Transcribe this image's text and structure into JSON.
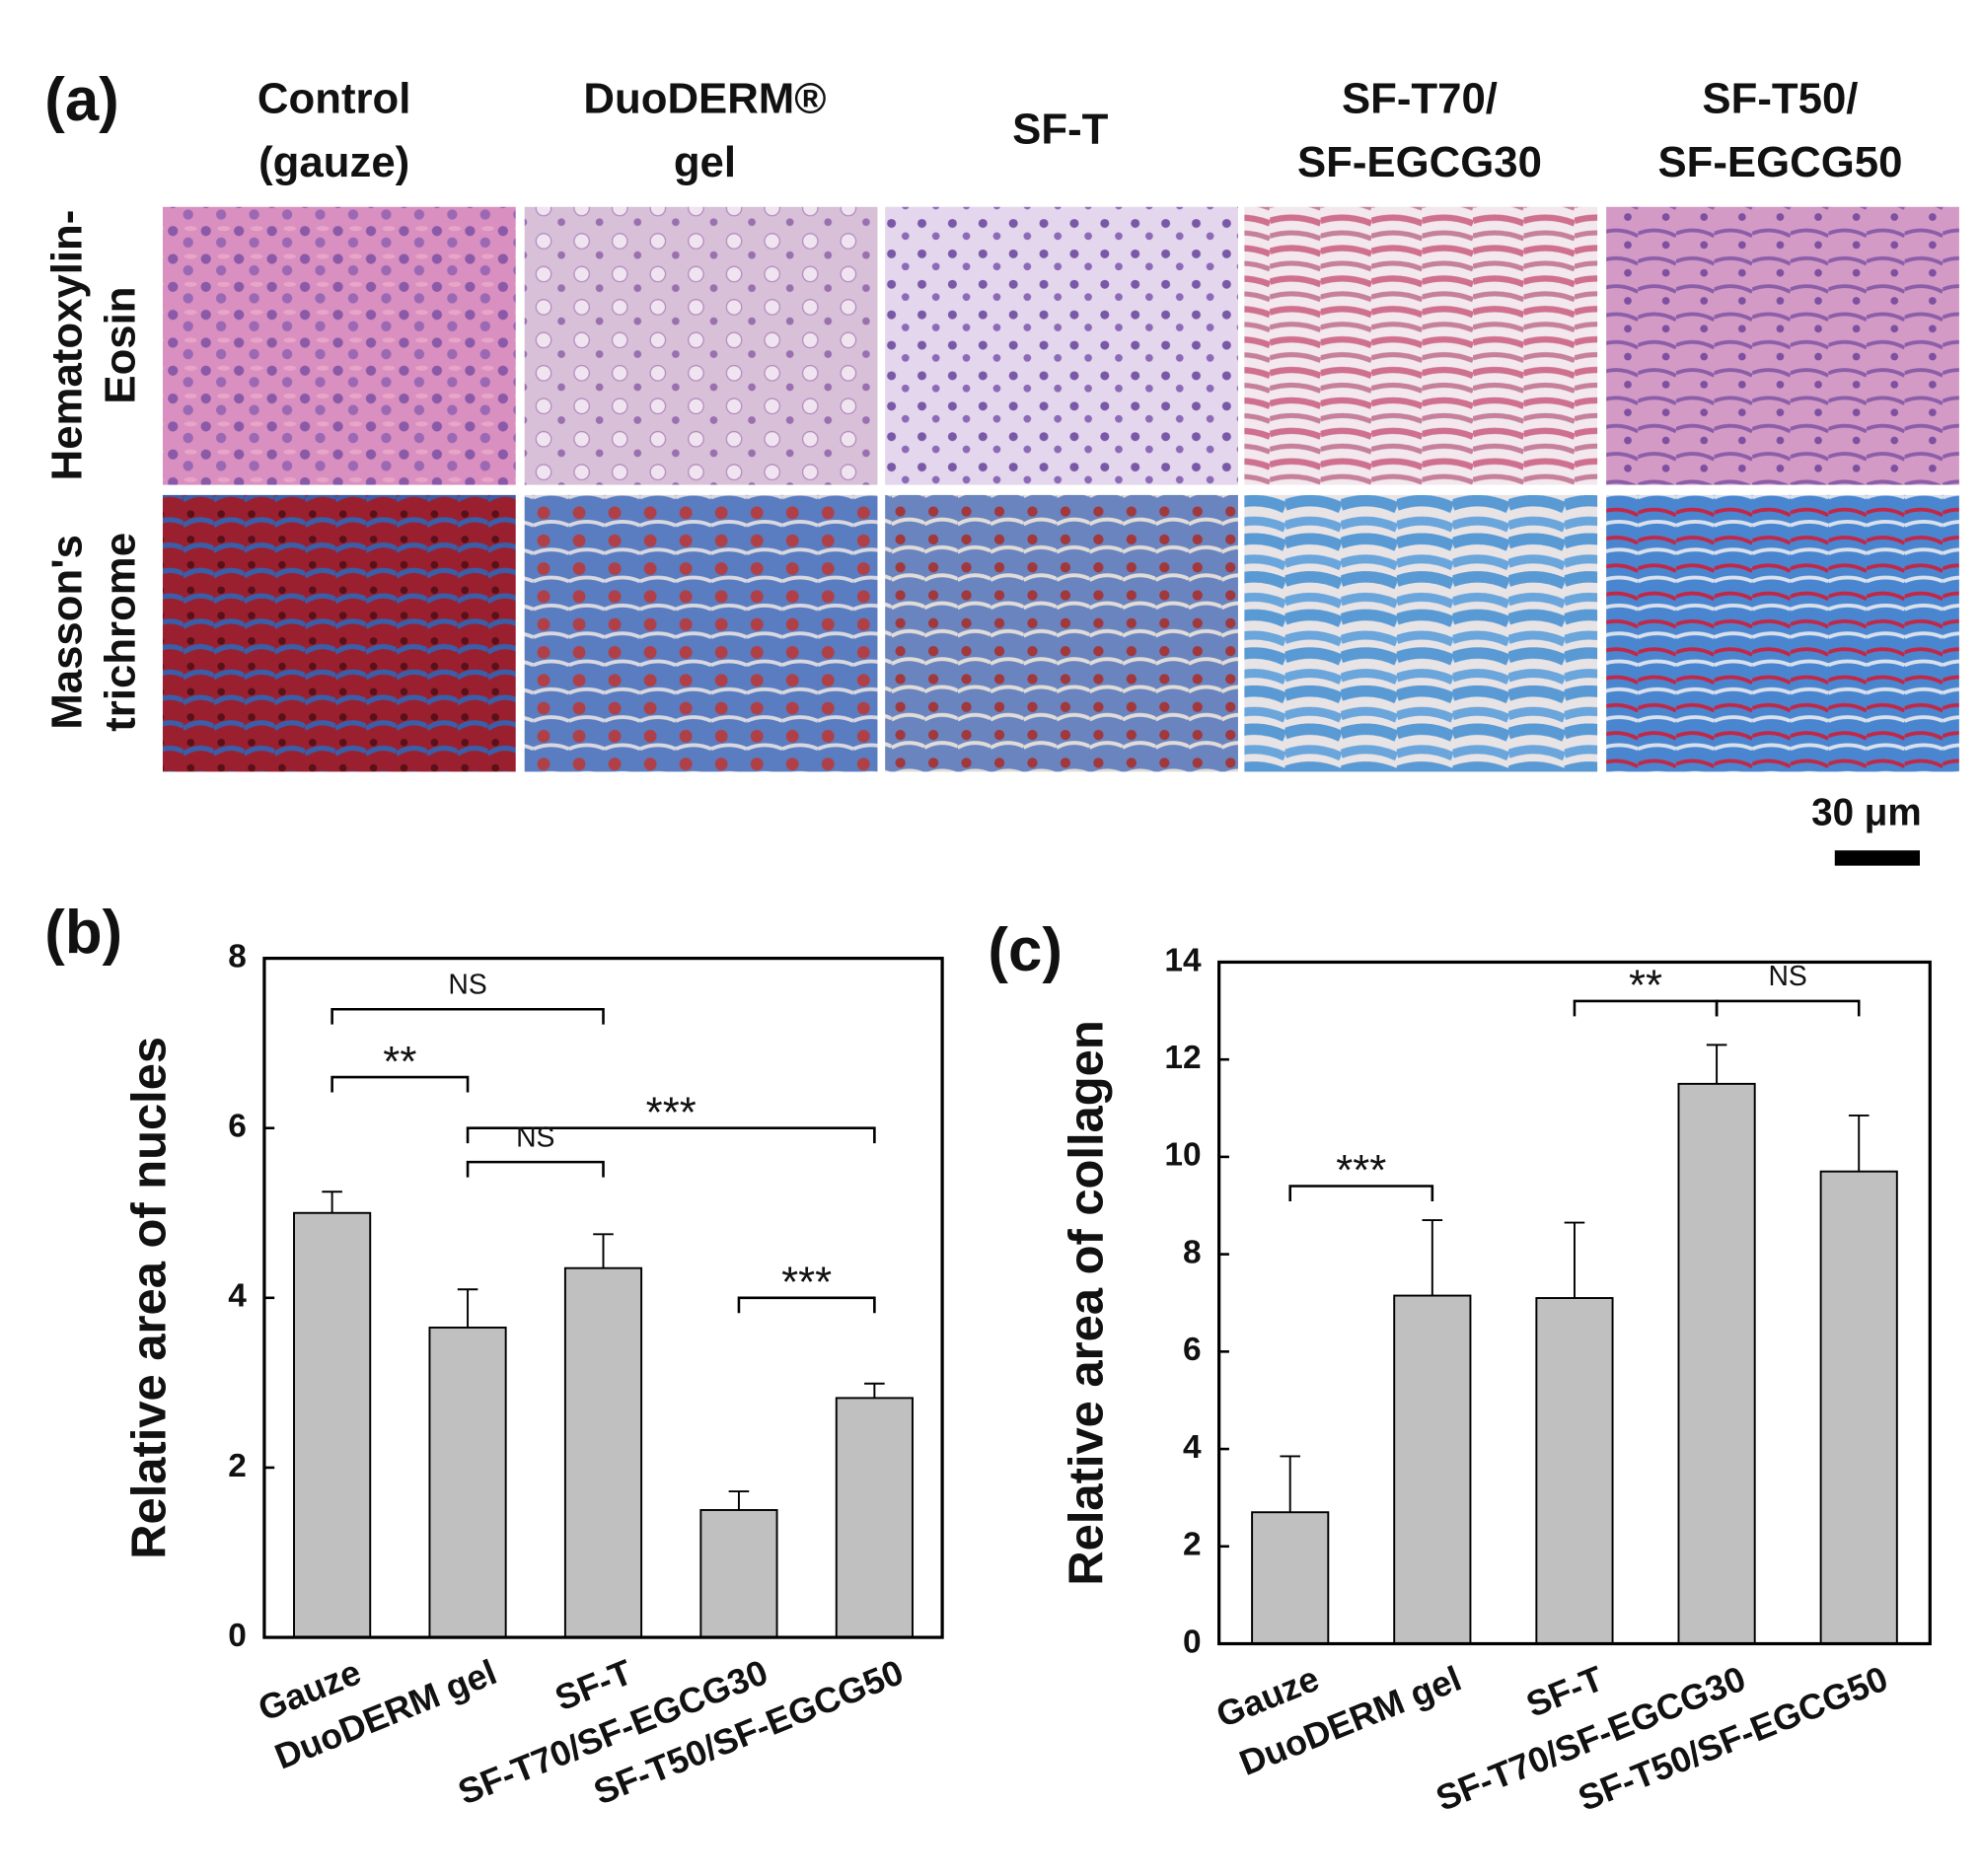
{
  "panel_a": {
    "label": "(a)",
    "columns": [
      [
        "Control",
        "(gauze)"
      ],
      [
        "DuoDERM®",
        "gel"
      ],
      [
        "SF-T"
      ],
      [
        "SF-T70/",
        "SF-EGCG30"
      ],
      [
        "SF-T50/",
        "SF-EGCG50"
      ]
    ],
    "rows": [
      [
        "Hematoxylin-",
        "Eosin"
      ],
      [
        "Masson's",
        "trichrome"
      ]
    ],
    "scale_bar": "30 μm"
  },
  "chart_data": [
    {
      "type": "bar",
      "label": "(b)",
      "ylabel": "Relative area of nucles",
      "categories": [
        "Gauze",
        "DuoDERM gel",
        "SF-T",
        "SF-T70/SF-EGCG30",
        "SF-T50/SF-EGCG50"
      ],
      "values": [
        5.0,
        3.65,
        4.35,
        1.5,
        2.82
      ],
      "errors": [
        0.25,
        0.45,
        0.4,
        0.22,
        0.17
      ],
      "color": "#c0c0c0",
      "ylim": [
        0,
        8
      ],
      "yticks": [
        0,
        2,
        4,
        6,
        8
      ],
      "annotations": [
        {
          "label": "NS",
          "from": 0,
          "to": 2,
          "y": 7.4
        },
        {
          "label": "**",
          "from": 0,
          "to": 1,
          "y": 6.6
        },
        {
          "label": "***",
          "from": 1,
          "to": 4,
          "y": 6.0
        },
        {
          "label": "NS",
          "from": 1,
          "to": 2,
          "y": 5.6
        },
        {
          "label": "***",
          "from": 3,
          "to": 4,
          "y": 4.0
        }
      ]
    },
    {
      "type": "bar",
      "label": "(c)",
      "ylabel": "Relative area of collagen",
      "categories": [
        "Gauze",
        "DuoDERM gel",
        "SF-T",
        "SF-T70/SF-EGCG30",
        "SF-T50/SF-EGCG50"
      ],
      "values": [
        2.7,
        7.15,
        7.1,
        11.5,
        9.7
      ],
      "errors": [
        1.15,
        1.55,
        1.55,
        0.8,
        1.15
      ],
      "color": "#c0c0c0",
      "ylim": [
        0,
        14
      ],
      "yticks": [
        0,
        2,
        4,
        6,
        8,
        10,
        12,
        14
      ],
      "annotations": [
        {
          "label": "***",
          "from": 0,
          "to": 1,
          "y": 9.4
        },
        {
          "label": "**",
          "from": 2,
          "to": 3,
          "y": 13.2
        },
        {
          "label": "NS",
          "from": 3,
          "to": 4,
          "y": 13.2
        }
      ]
    }
  ]
}
